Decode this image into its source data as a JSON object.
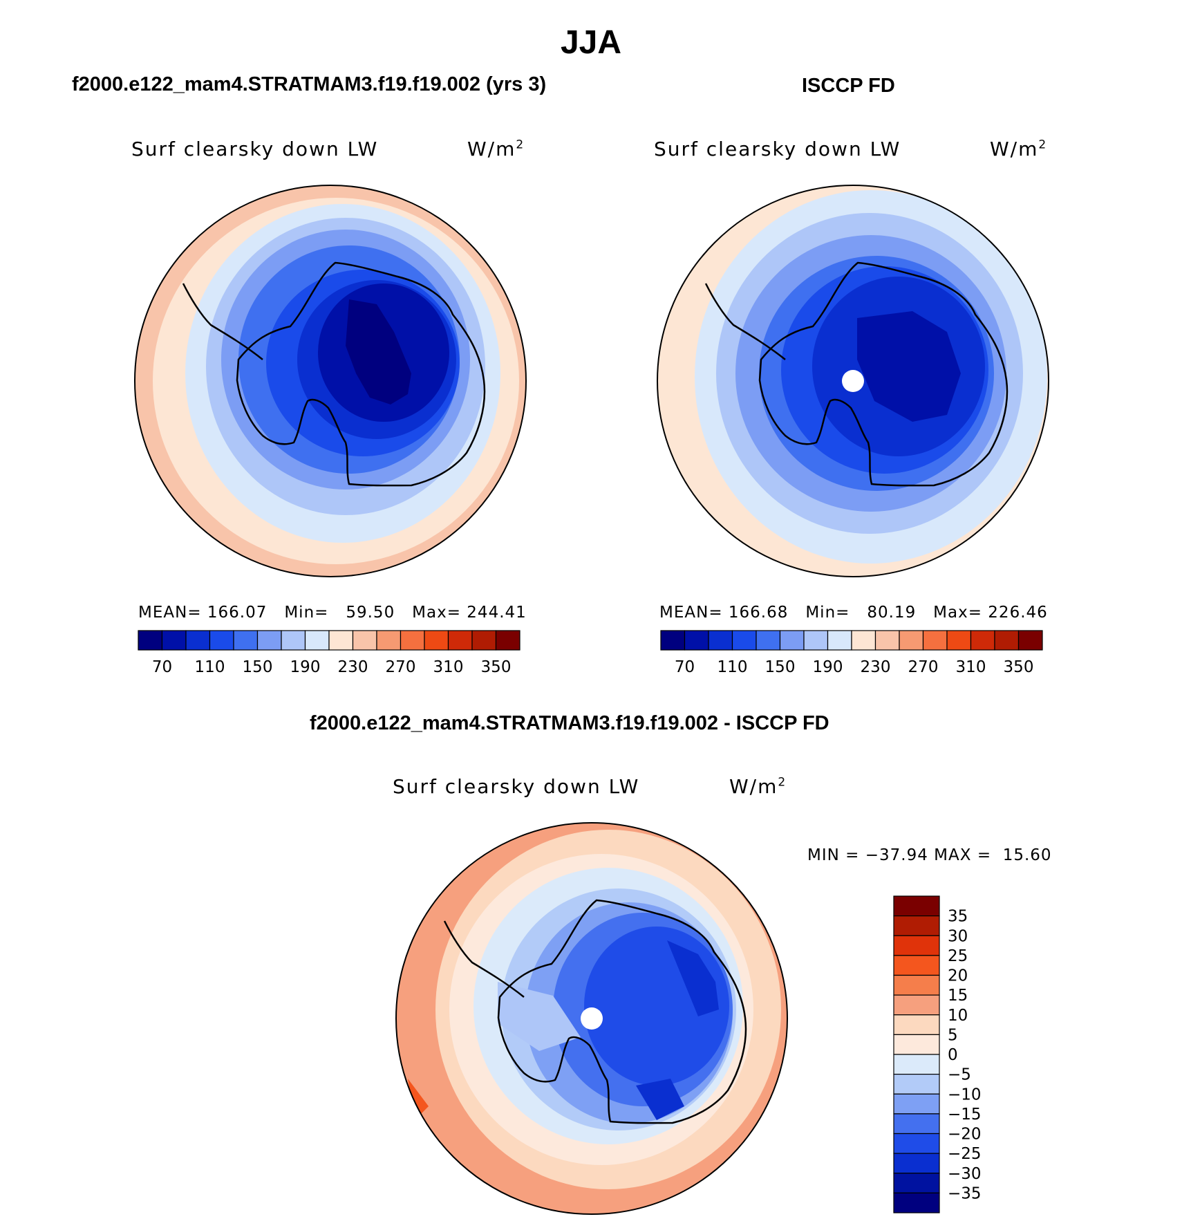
{
  "title": "JJA",
  "panels": {
    "model": {
      "heading": "f2000.e122_mam4.STRATMAM3.f19.f19.002 (yrs 3)",
      "variable": "Surf clearsky down LW",
      "units": "W/m",
      "units_sup": "2",
      "stats": {
        "mean_label": "MEAN=",
        "mean": "166.07",
        "min_label": "Min=",
        "min": "59.50",
        "max_label": "Max=",
        "max": "244.41"
      }
    },
    "obs": {
      "heading": "ISCCP FD",
      "variable": "Surf clearsky down LW",
      "units": "W/m",
      "units_sup": "2",
      "stats": {
        "mean_label": "MEAN=",
        "mean": "166.68",
        "min_label": "Min=",
        "min": "80.19",
        "max_label": "Max=",
        "max": "226.46"
      }
    },
    "diff": {
      "heading": "f2000.e122_mam4.STRATMAM3.f19.f19.002 - ISCCP FD",
      "variable": "Surf clearsky down LW",
      "units": "W/m",
      "units_sup": "2",
      "stats": {
        "min_label": "MIN =",
        "min": "−37.94",
        "max_label": "MAX =",
        "max": "15.60"
      }
    }
  },
  "colorbar_abs": {
    "colors": [
      "#00007f",
      "#0010a8",
      "#0a2fd0",
      "#1a4bea",
      "#3f70f0",
      "#7c9df4",
      "#aec6f8",
      "#d8e8fb",
      "#fde6d4",
      "#f8c4aa",
      "#f69a72",
      "#f5703f",
      "#ee4a14",
      "#cf2a08",
      "#b01c03",
      "#7a0000"
    ],
    "tick_labels": [
      "70",
      "110",
      "150",
      "190",
      "230",
      "270",
      "310",
      "350"
    ]
  },
  "colorbar_diff": {
    "colors": [
      "#7a0000",
      "#b01c03",
      "#e0330a",
      "#f4561e",
      "#f57e4b",
      "#f6a07e",
      "#fcd9bf",
      "#fde9dc",
      "#dbeafa",
      "#b2cbf8",
      "#7ea0f4",
      "#4470ef",
      "#1f4ce8",
      "#0a2fd0",
      "#0012a0",
      "#00007f"
    ],
    "tick_labels": [
      "35",
      "30",
      "25",
      "20",
      "15",
      "10",
      "5",
      "0",
      "−5",
      "−10",
      "−15",
      "−20",
      "−25",
      "−30",
      "−35"
    ]
  }
}
